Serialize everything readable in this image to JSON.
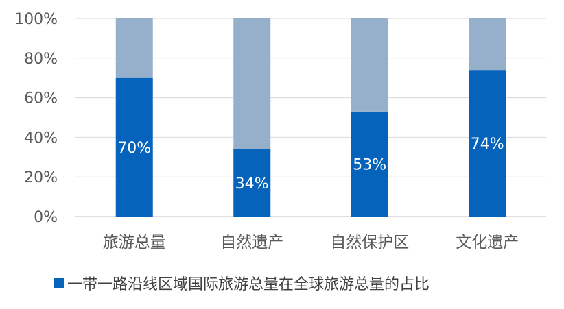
{
  "chart_data": {
    "type": "bar",
    "stacked": true,
    "percent_stacked": true,
    "categories": [
      "旅游总量",
      "自然遗产",
      "自然保护区",
      "文化遗产"
    ],
    "series": [
      {
        "name": "一带一路沿线区域国际旅游总量在全球旅游总量的占比",
        "values": [
          70,
          34,
          53,
          74
        ],
        "color": "#0563BC"
      },
      {
        "values": [
          30,
          66,
          47,
          26
        ],
        "color": "#96AFCA"
      }
    ],
    "data_labels": [
      "70%",
      "34%",
      "53%",
      "74%"
    ],
    "y_ticks": [
      "0%",
      "20%",
      "40%",
      "60%",
      "80%",
      "100%"
    ],
    "ylim": [
      0,
      100
    ],
    "grid": true,
    "legend_position": "bottom"
  }
}
